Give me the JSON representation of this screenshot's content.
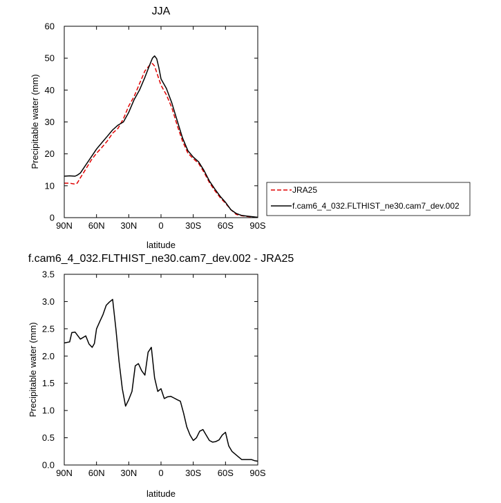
{
  "chart_data": [
    {
      "type": "line",
      "title": "JJA",
      "xlabel": "latitude",
      "ylabel": "Precipitable water (mm)",
      "xlim": [
        90,
        -90
      ],
      "ylim": [
        0,
        60
      ],
      "grid": false,
      "legend_placement": "right",
      "x_ticks": [
        90,
        60,
        30,
        0,
        -30,
        -60,
        -90
      ],
      "x_tick_labels": [
        "90N",
        "60N",
        "30N",
        "0",
        "30S",
        "60S",
        "90S"
      ],
      "y_ticks": [
        0,
        10,
        20,
        30,
        40,
        50,
        60
      ],
      "y_tick_labels": [
        "0",
        "10",
        "20",
        "30",
        "40",
        "50",
        "60"
      ],
      "series": [
        {
          "name": "JRA25",
          "color": "#e00000",
          "dash": true,
          "x": [
            90,
            85,
            80,
            78,
            75,
            70,
            65,
            60,
            55,
            50,
            45,
            40,
            35,
            30,
            25,
            20,
            15,
            10,
            8,
            6,
            4,
            2,
            0,
            -5,
            -10,
            -15,
            -20,
            -25,
            -30,
            -35,
            -40,
            -45,
            -50,
            -55,
            -60,
            -65,
            -70,
            -75,
            -80,
            -85,
            -90
          ],
          "y": [
            10.8,
            10.8,
            10.5,
            10.8,
            12.5,
            15.2,
            18,
            20.2,
            22,
            24,
            26.5,
            28,
            31,
            35,
            38,
            42,
            46,
            48,
            48.3,
            47.5,
            45.5,
            43.5,
            41.5,
            38.5,
            34.5,
            29,
            24,
            20.2,
            18.5,
            17,
            14.2,
            11,
            8.5,
            6.3,
            4.5,
            2.5,
            1,
            0.6,
            0.4,
            0.2,
            0.1
          ]
        },
        {
          "name": "f.cam6_4_032.FLTHIST_ne30.cam7_dev.002",
          "color": "#000000",
          "dash": false,
          "x": [
            90,
            85,
            80,
            78,
            75,
            70,
            65,
            60,
            55,
            50,
            45,
            40,
            35,
            30,
            25,
            20,
            15,
            10,
            8,
            6,
            4,
            2,
            0,
            -5,
            -10,
            -15,
            -20,
            -25,
            -30,
            -35,
            -40,
            -45,
            -50,
            -55,
            -60,
            -65,
            -70,
            -75,
            -80,
            -85,
            -90
          ],
          "y": [
            13,
            13.1,
            13,
            13.3,
            14,
            16.5,
            19,
            21.5,
            23.5,
            25.5,
            27.5,
            29,
            30,
            33,
            37,
            40,
            44,
            48.3,
            50,
            50.7,
            49.8,
            47,
            43.5,
            40.5,
            36,
            30.5,
            25,
            21,
            19,
            17.5,
            14.8,
            11.5,
            9,
            6.7,
            4.8,
            2.5,
            1.3,
            0.7,
            0.5,
            0.3,
            0.1
          ]
        }
      ]
    },
    {
      "type": "line",
      "title": "f.cam6_4_032.FLTHIST_ne30.cam7_dev.002 - JRA25",
      "xlabel": "latitude",
      "ylabel": "Precipitable water (mm)",
      "xlim": [
        90,
        -90
      ],
      "ylim": [
        0,
        3.5
      ],
      "grid": false,
      "x_ticks": [
        90,
        60,
        30,
        0,
        -30,
        -60,
        -90
      ],
      "x_tick_labels": [
        "90N",
        "60N",
        "30N",
        "0",
        "30S",
        "60S",
        "90S"
      ],
      "y_ticks": [
        0,
        0.5,
        1,
        1.5,
        2,
        2.5,
        3,
        3.5
      ],
      "y_tick_labels": [
        "0.0",
        "0.5",
        "1.0",
        "1.5",
        "2.0",
        "2.5",
        "3.0",
        "3.5"
      ],
      "series": [
        {
          "color": "#000000",
          "x": [
            90,
            85,
            83,
            80,
            75,
            70,
            67,
            64,
            62,
            60,
            57,
            54,
            51,
            48,
            45,
            42,
            39,
            36,
            33,
            30,
            27,
            24,
            21,
            18,
            15,
            12,
            9,
            6,
            3,
            0,
            -3,
            -6,
            -9,
            -12,
            -15,
            -18,
            -21,
            -24,
            -27,
            -30,
            -33,
            -36,
            -39,
            -42,
            -45,
            -48,
            -51,
            -54,
            -57,
            -60,
            -63,
            -66,
            -69,
            -72,
            -75,
            -78,
            -81,
            -84,
            -87,
            -90
          ],
          "y": [
            2.24,
            2.26,
            2.43,
            2.44,
            2.31,
            2.37,
            2.22,
            2.16,
            2.23,
            2.5,
            2.63,
            2.76,
            2.93,
            2.99,
            3.04,
            2.5,
            1.9,
            1.4,
            1.08,
            1.2,
            1.35,
            1.82,
            1.86,
            1.73,
            1.65,
            2.07,
            2.16,
            1.6,
            1.35,
            1.4,
            1.22,
            1.25,
            1.26,
            1.23,
            1.2,
            1.17,
            0.95,
            0.7,
            0.55,
            0.45,
            0.5,
            0.62,
            0.65,
            0.55,
            0.45,
            0.42,
            0.43,
            0.46,
            0.55,
            0.6,
            0.35,
            0.25,
            0.2,
            0.15,
            0.1,
            0.1,
            0.1,
            0.1,
            0.08,
            0.07
          ]
        }
      ]
    }
  ]
}
